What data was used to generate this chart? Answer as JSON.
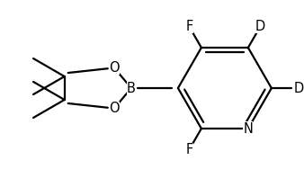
{
  "bg_color": "#ffffff",
  "line_color": "#000000",
  "line_width": 1.6,
  "font_size": 10.5,
  "figsize": [
    3.38,
    1.98
  ],
  "dpi": 100,
  "xlim": [
    0,
    338
  ],
  "ylim": [
    0,
    198
  ]
}
